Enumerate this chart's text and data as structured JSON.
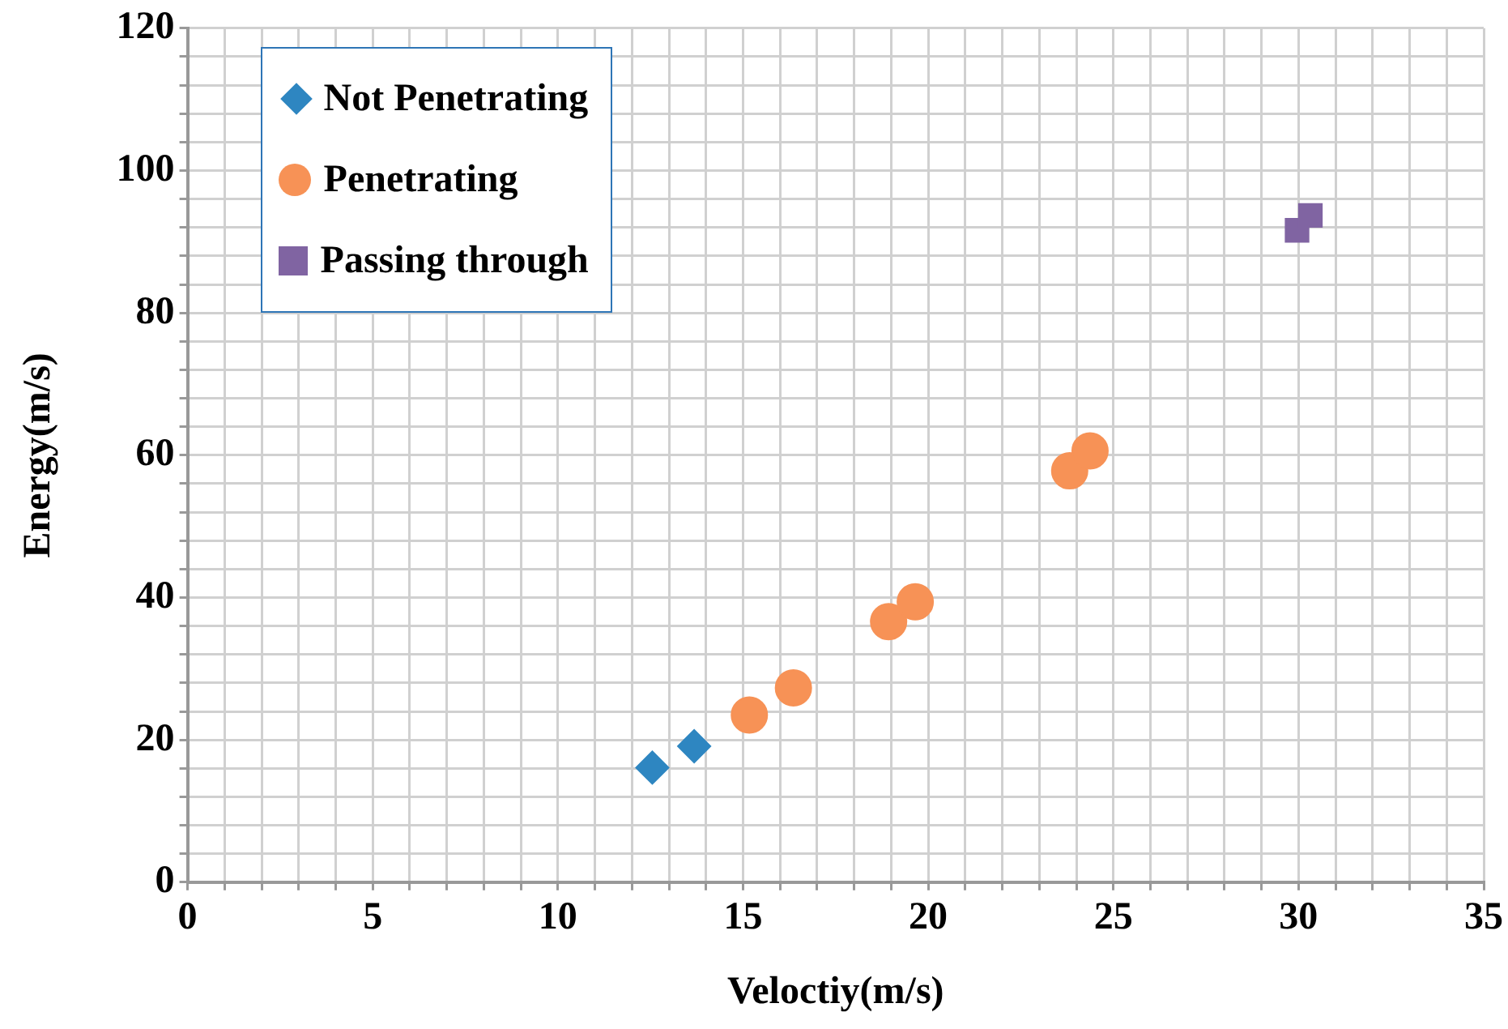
{
  "chart_data": {
    "type": "scatter",
    "xlabel": "Veloctiy(m/s)",
    "ylabel": "Energy(m/s)",
    "xlim": [
      0,
      35
    ],
    "ylim": [
      0,
      120
    ],
    "xticks": [
      0,
      {
        "value": 1,
        "label": null
      },
      {
        "value": 2,
        "label": null
      },
      {
        "value": 3,
        "label": null
      },
      {
        "value": 4,
        "label": null
      },
      5,
      {
        "value": 6,
        "label": null
      },
      {
        "value": 7,
        "label": null
      },
      {
        "value": 8,
        "label": null
      },
      {
        "value": 9,
        "label": null
      },
      10,
      {
        "value": 11,
        "label": null
      },
      {
        "value": 12,
        "label": null
      },
      {
        "value": 13,
        "label": null
      },
      {
        "value": 14,
        "label": null
      },
      15,
      {
        "value": 16,
        "label": null
      },
      {
        "value": 17,
        "label": null
      },
      {
        "value": 18,
        "label": null
      },
      {
        "value": 19,
        "label": null
      },
      20,
      {
        "value": 21,
        "label": null
      },
      {
        "value": 22,
        "label": null
      },
      {
        "value": 23,
        "label": null
      },
      {
        "value": 24,
        "label": null
      },
      25,
      {
        "value": 26,
        "label": null
      },
      {
        "value": 27,
        "label": null
      },
      {
        "value": 28,
        "label": null
      },
      {
        "value": 29,
        "label": null
      },
      30,
      {
        "value": 31,
        "label": null
      },
      {
        "value": 32,
        "label": null
      },
      {
        "value": 33,
        "label": null
      },
      {
        "value": 34,
        "label": null
      },
      35
    ],
    "yticks": [
      0,
      {
        "value": 4,
        "label": null
      },
      {
        "value": 8,
        "label": null
      },
      {
        "value": 12,
        "label": null
      },
      {
        "value": 16,
        "label": null
      },
      20,
      {
        "value": 24,
        "label": null
      },
      {
        "value": 28,
        "label": null
      },
      {
        "value": 32,
        "label": null
      },
      {
        "value": 36,
        "label": null
      },
      40,
      {
        "value": 44,
        "label": null
      },
      {
        "value": 48,
        "label": null
      },
      {
        "value": 52,
        "label": null
      },
      {
        "value": 56,
        "label": null
      },
      60,
      {
        "value": 64,
        "label": null
      },
      {
        "value": 68,
        "label": null
      },
      {
        "value": 72,
        "label": null
      },
      {
        "value": 76,
        "label": null
      },
      80,
      {
        "value": 84,
        "label": null
      },
      {
        "value": 88,
        "label": null
      },
      {
        "value": 92,
        "label": null
      },
      {
        "value": 96,
        "label": null
      },
      100,
      {
        "value": 104,
        "label": null
      },
      {
        "value": 108,
        "label": null
      },
      {
        "value": 112,
        "label": null
      },
      {
        "value": 116,
        "label": null
      },
      120
    ],
    "grid": true,
    "legend": "top left",
    "series": [
      {
        "name": "Not Penetrating",
        "color": "#2e86c1",
        "marker": "diamond",
        "x": [
          12.55,
          13.68
        ],
        "values": [
          16.1,
          19.1
        ]
      },
      {
        "name": "Penetrating",
        "color": "#f79256",
        "marker": "circle",
        "x": [
          15.17,
          16.36,
          18.93,
          19.65,
          23.82,
          24.37
        ],
        "values": [
          23.5,
          27.3,
          36.6,
          39.4,
          57.8,
          60.6
        ]
      },
      {
        "name": "Passing through",
        "color": "#8064a2",
        "marker": "square",
        "x": [
          29.96,
          30.32
        ],
        "values": [
          91.6,
          93.7
        ]
      }
    ]
  }
}
